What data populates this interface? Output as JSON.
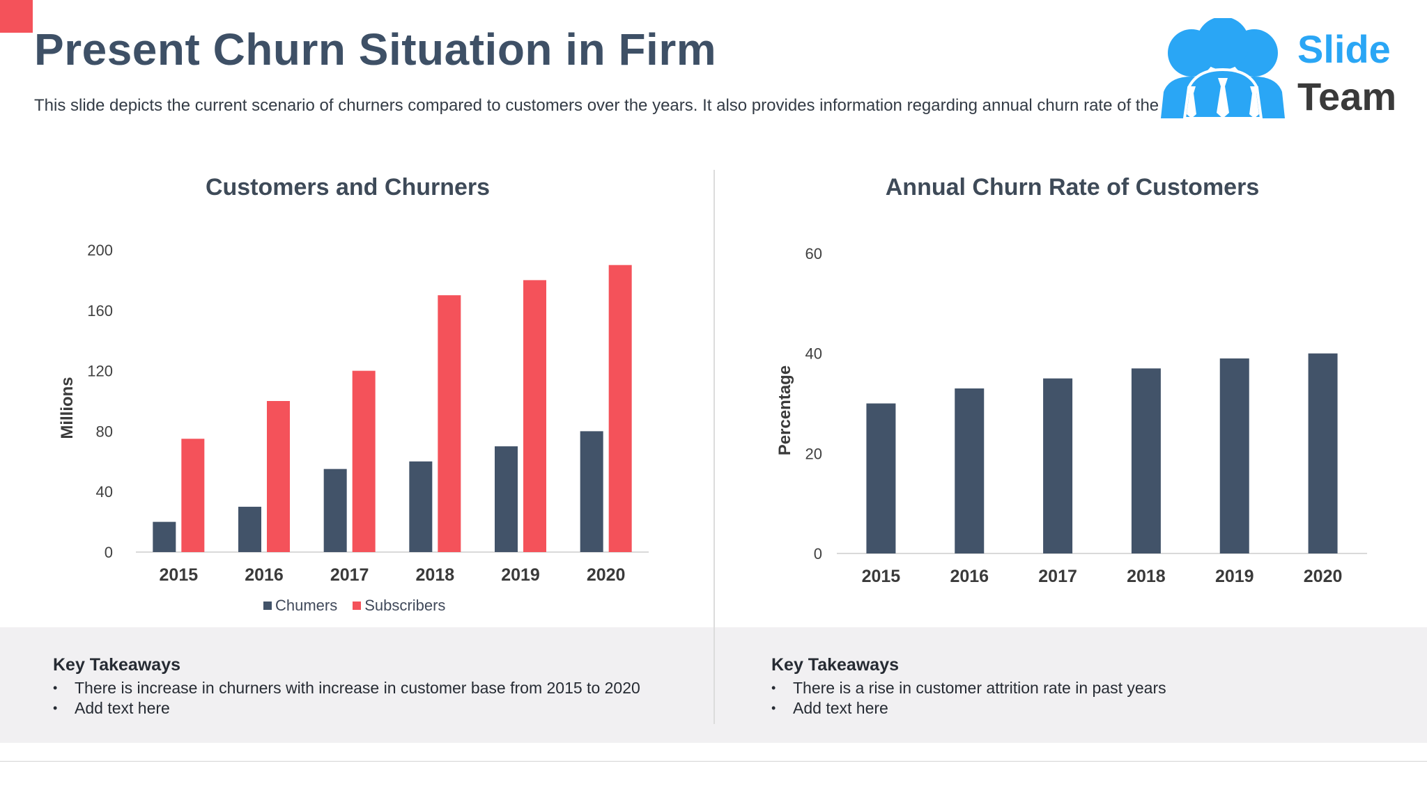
{
  "slide": {
    "title": "Present Churn Situation in Firm",
    "subtitle": "This slide depicts the current scenario of churners compared to customers over the years. It also provides information regarding annual churn rate of the customers."
  },
  "logo": {
    "word1": "Slide",
    "word2": "Team",
    "icon": "people-group-icon"
  },
  "colors": {
    "accent": "#f4525a",
    "navy": "#425369",
    "logo_blue": "#2aa6f5"
  },
  "chart_data": [
    {
      "type": "bar",
      "title": "Customers and Churners",
      "ylabel": "Millions",
      "xlabel": "",
      "categories": [
        "2015",
        "2016",
        "2017",
        "2018",
        "2019",
        "2020"
      ],
      "series": [
        {
          "name": "Chumers",
          "color": "#425369",
          "values": [
            20,
            30,
            55,
            60,
            70,
            80
          ]
        },
        {
          "name": "Subscribers",
          "color": "#f4525a",
          "values": [
            75,
            100,
            120,
            170,
            180,
            190
          ]
        }
      ],
      "ylim": [
        0,
        200
      ],
      "yticks": [
        0,
        40,
        80,
        120,
        160,
        200
      ],
      "grid": false,
      "legend": "bottom"
    },
    {
      "type": "bar",
      "title": "Annual Churn Rate of Customers",
      "ylabel": "Percentage",
      "xlabel": "",
      "categories": [
        "2015",
        "2016",
        "2017",
        "2018",
        "2019",
        "2020"
      ],
      "series": [
        {
          "color": "#425369",
          "values": [
            30,
            33,
            35,
            37,
            39,
            40
          ]
        }
      ],
      "ylim": [
        0,
        60
      ],
      "yticks": [
        0,
        20,
        40,
        60
      ],
      "grid": false
    }
  ],
  "takeaways": [
    {
      "heading": "Key Takeaways",
      "items": [
        "There is increase in churners with increase in customer base from 2015 to 2020",
        "Add text here"
      ]
    },
    {
      "heading": "Key Takeaways",
      "items": [
        "There is a rise in customer attrition rate in past years",
        "Add text here"
      ]
    }
  ]
}
